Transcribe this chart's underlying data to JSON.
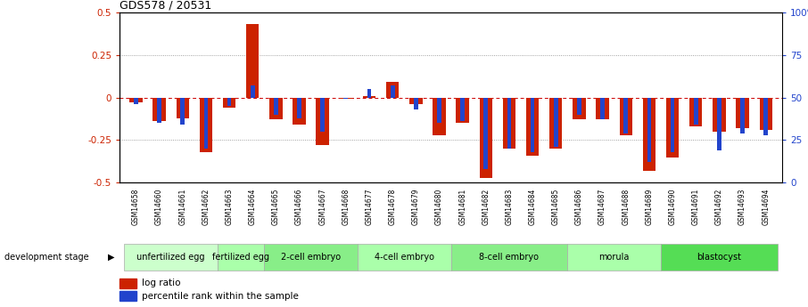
{
  "title": "GDS578 / 20531",
  "samples": [
    "GSM14658",
    "GSM14660",
    "GSM14661",
    "GSM14662",
    "GSM14663",
    "GSM14664",
    "GSM14665",
    "GSM14666",
    "GSM14667",
    "GSM14668",
    "GSM14677",
    "GSM14678",
    "GSM14679",
    "GSM14680",
    "GSM14681",
    "GSM14682",
    "GSM14683",
    "GSM14684",
    "GSM14685",
    "GSM14686",
    "GSM14687",
    "GSM14688",
    "GSM14689",
    "GSM14690",
    "GSM14691",
    "GSM14692",
    "GSM14693",
    "GSM14694"
  ],
  "log_ratio": [
    -0.03,
    -0.14,
    -0.12,
    -0.32,
    -0.06,
    0.43,
    -0.13,
    -0.16,
    -0.28,
    -0.01,
    0.01,
    0.09,
    -0.04,
    -0.22,
    -0.15,
    -0.47,
    -0.3,
    -0.34,
    -0.3,
    -0.13,
    -0.13,
    -0.22,
    -0.43,
    -0.35,
    -0.17,
    -0.2,
    -0.18,
    -0.19
  ],
  "percentile_rank": [
    46,
    35,
    34,
    20,
    45,
    57,
    40,
    38,
    30,
    49,
    55,
    57,
    43,
    35,
    36,
    8,
    20,
    18,
    21,
    40,
    37,
    29,
    12,
    18,
    34,
    19,
    29,
    28
  ],
  "stages": [
    {
      "label": "unfertilized egg",
      "start": 0,
      "end": 4,
      "color": "#ccffcc"
    },
    {
      "label": "fertilized egg",
      "start": 4,
      "end": 6,
      "color": "#aaffaa"
    },
    {
      "label": "2-cell embryo",
      "start": 6,
      "end": 10,
      "color": "#88ee88"
    },
    {
      "label": "4-cell embryo",
      "start": 10,
      "end": 14,
      "color": "#aaffaa"
    },
    {
      "label": "8-cell embryo",
      "start": 14,
      "end": 19,
      "color": "#88ee88"
    },
    {
      "label": "morula",
      "start": 19,
      "end": 23,
      "color": "#aaffaa"
    },
    {
      "label": "blastocyst",
      "start": 23,
      "end": 28,
      "color": "#55dd55"
    }
  ],
  "bar_color_red": "#cc2200",
  "bar_color_blue": "#2244cc",
  "ylim": [
    -0.5,
    0.5
  ],
  "yticks_left": [
    -0.5,
    -0.25,
    0.0,
    0.25,
    0.5
  ],
  "ytick_labels_left": [
    "-0.5",
    "-0.25",
    "0",
    "0.25",
    "0.5"
  ],
  "right_ytick_vals": [
    -0.5,
    -0.25,
    0.0,
    0.25,
    0.5
  ],
  "right_yticklabels": [
    "0",
    "25",
    "50",
    "75",
    "100%"
  ],
  "grid_dotted_at": [
    -0.25,
    0.25
  ],
  "zero_line_color": "#cc0000",
  "dev_stage_label": "development stage",
  "legend_log_ratio": "log ratio",
  "legend_percentile": "percentile rank within the sample"
}
